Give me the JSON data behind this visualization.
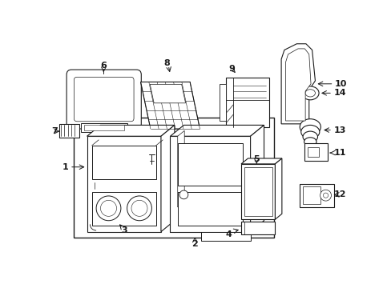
{
  "bg_color": "#ffffff",
  "line_color": "#1a1a1a",
  "fig_width": 4.89,
  "fig_height": 3.6,
  "dpi": 100,
  "font_size": 8,
  "lw": 0.8
}
